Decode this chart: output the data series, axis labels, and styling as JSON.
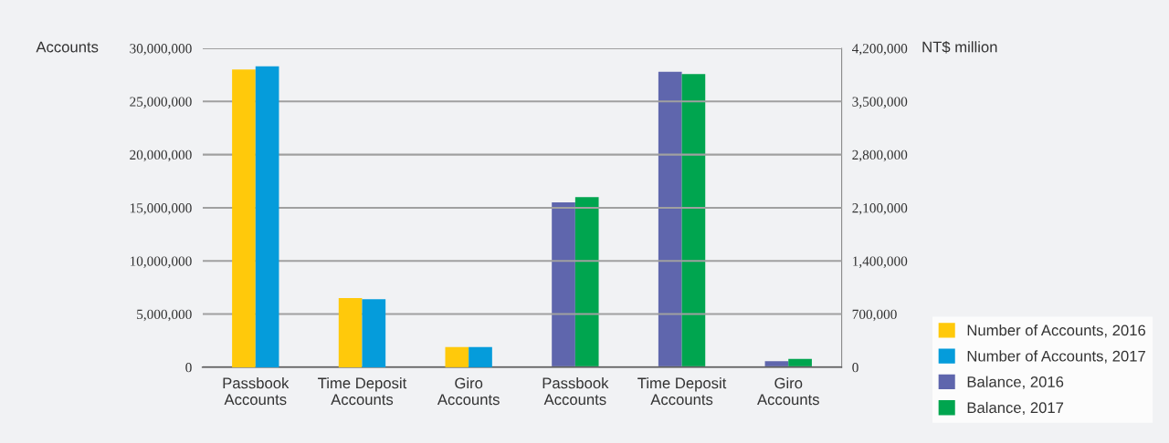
{
  "chart_data": {
    "type": "bar",
    "categories": [
      "Passbook\nAccounts",
      "Time Deposit\nAccounts",
      "Giro\nAccounts",
      "Passbook\nAccounts",
      "Time Deposit\nAccounts",
      "Giro\nAccounts"
    ],
    "ylabel": "Accounts",
    "y2label": "NT$ million",
    "series": [
      {
        "name": "Number of Accounts, 2016",
        "color": "#ffc90b",
        "values": [
          28000000,
          6500000,
          1900000,
          null,
          null,
          null
        ]
      },
      {
        "name": "Number of Accounts, 2017",
        "color": "#059cdb",
        "values": [
          28300000,
          6400000,
          1900000,
          null,
          null,
          null
        ]
      },
      {
        "name": "Balance, 2016",
        "color": "#5f66ad",
        "axis": "y2",
        "values": [
          null,
          null,
          null,
          2170000,
          3890000,
          80000
        ]
      },
      {
        "name": "Balance, 2017",
        "color": "#00a54f",
        "axis": "y2",
        "values": [
          null,
          null,
          null,
          2240000,
          3860000,
          110000
        ]
      }
    ],
    "ylim": [
      0,
      30000000
    ],
    "yticks": [
      {
        "value": 0,
        "label": "0"
      },
      {
        "value": 5000000,
        "label": "5,000,000"
      },
      {
        "value": 10000000,
        "label": "10,000,000"
      },
      {
        "value": 15000000,
        "label": "15,000,000"
      },
      {
        "value": 20000000,
        "label": "20,000,000"
      },
      {
        "value": 25000000,
        "label": "25,000,000"
      },
      {
        "value": 30000000,
        "label": "30,000,000"
      }
    ],
    "y2lim": [
      0,
      4200000
    ],
    "y2ticks": [
      {
        "value": 0,
        "label": "0"
      },
      {
        "value": 700000,
        "label": "700,000"
      },
      {
        "value": 1400000,
        "label": "1,400,000"
      },
      {
        "value": 2100000,
        "label": "2,100,000"
      },
      {
        "value": 2800000,
        "label": "2,800,000"
      },
      {
        "value": 3500000,
        "label": "3,500,000"
      },
      {
        "value": 4200000,
        "label": "4,200,000"
      }
    ],
    "grid": "y",
    "legend": "bottom right"
  }
}
